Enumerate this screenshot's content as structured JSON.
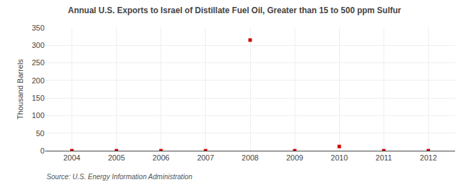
{
  "chart_data": {
    "type": "scatter",
    "title": "Annual U.S. Exports to Israel of Distillate Fuel Oil, Greater than 15 to 500 ppm Sulfur",
    "ylabel": "Thousand Barrels",
    "source": "Source: U.S. Energy Information Administration",
    "x": [
      2004,
      2005,
      2006,
      2007,
      2008,
      2009,
      2010,
      2011,
      2012
    ],
    "values": [
      0,
      0,
      0,
      0,
      315,
      0,
      12,
      0,
      0
    ],
    "color": "#cc0000",
    "marker": "square",
    "xlim": [
      2003.4,
      2012.6
    ],
    "xticks": [
      2004,
      2005,
      2006,
      2007,
      2008,
      2009,
      2010,
      2011,
      2012
    ],
    "ylim": [
      0,
      350
    ],
    "yticks": [
      0,
      50,
      100,
      150,
      200,
      250,
      300,
      350
    ],
    "grid": true
  }
}
